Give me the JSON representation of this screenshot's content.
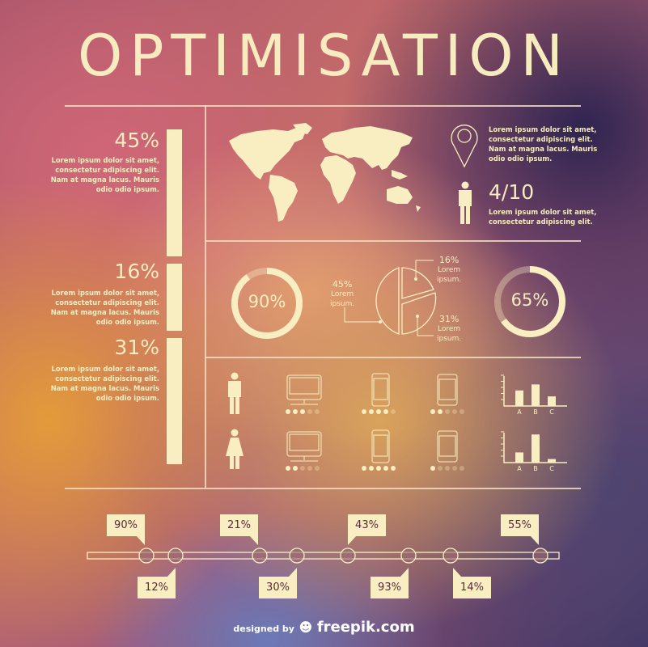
{
  "title": "OPTIMISATION",
  "colors": {
    "accent": "#f8eec2",
    "text_dark": "#5a2a3a"
  },
  "left_stats": [
    {
      "value": "45%",
      "fraction": 0.45,
      "text": [
        "Lorem ipsum dolor sit amet,",
        "consectetur adipiscing elit.",
        "Nam at magna lacus. Mauris",
        "odio odio ipsum."
      ]
    },
    {
      "value": "16%",
      "fraction": 0.16,
      "text": [
        "Lorem ipsum dolor sit amet,",
        "consectetur adipiscing elit.",
        "Nam at magna lacus. Mauris",
        "odio odio ipsum."
      ]
    },
    {
      "value": "31%",
      "fraction": 0.31,
      "text": [
        "Lorem ipsum dolor sit amet,",
        "consectetur adipiscing elit.",
        "Nam at magna lacus. Mauris",
        "odio odio ipsum."
      ]
    }
  ],
  "map_section": {
    "pin_text": [
      "Lorem ipsum dolor sit amet,",
      "consectetur adipiscing elit.",
      "Nam at magna lacus. Mauris",
      "odio odio ipsum."
    ],
    "ratio": "4/10",
    "ratio_text": [
      "Lorem ipsum dolor sit amet,",
      "consectetur adipiscing elit."
    ]
  },
  "charts": {
    "donut_left": {
      "label": "90%",
      "value": 90
    },
    "donut_right": {
      "label": "65%",
      "value": 65
    },
    "pie": [
      {
        "percent": "45%",
        "text": [
          "Lorem",
          "ipsum."
        ]
      },
      {
        "percent": "16%",
        "text": [
          "Lorem",
          "ipsum."
        ]
      },
      {
        "percent": "31%",
        "text": [
          "Lorem",
          "ipsum."
        ]
      }
    ]
  },
  "devices": {
    "rows": [
      {
        "person": "male-icon",
        "monitor_dots": 3,
        "phone_dots": 4,
        "tablet_dots": 2,
        "bars": [
          {
            "label": "A",
            "value": 2.6
          },
          {
            "label": "B",
            "value": 3.6
          },
          {
            "label": "C",
            "value": 1.6
          }
        ]
      },
      {
        "person": "female-icon",
        "monitor_dots": 2,
        "phone_dots": 5,
        "tablet_dots": 1,
        "bars": [
          {
            "label": "A",
            "value": 1.7
          },
          {
            "label": "B",
            "value": 4.7
          },
          {
            "label": "C",
            "value": 0.6
          }
        ]
      }
    ],
    "dots_total": 5,
    "bar_max": 5
  },
  "timeline": [
    {
      "label": "90%",
      "pos": "above"
    },
    {
      "label": "12%",
      "pos": "below"
    },
    {
      "label": "21%",
      "pos": "above"
    },
    {
      "label": "30%",
      "pos": "below"
    },
    {
      "label": "43%",
      "pos": "above"
    },
    {
      "label": "93%",
      "pos": "below"
    },
    {
      "label": "14%",
      "pos": "below"
    },
    {
      "label": "55%",
      "pos": "above"
    }
  ],
  "footer": {
    "prefix": "designed by",
    "brand": "freepik.com"
  }
}
